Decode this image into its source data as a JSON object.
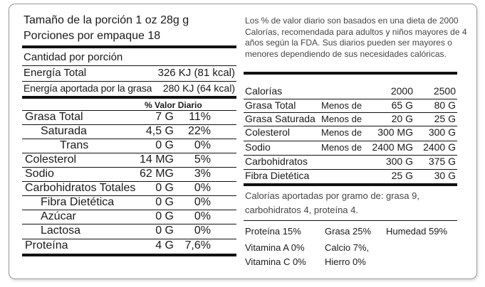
{
  "serving": {
    "size": "Tamaño de la porción 1 oz 28g g",
    "per_container": "Porciones por empaque 18"
  },
  "amount_header": "Cantidad por porción",
  "energy": {
    "label": "Energía Total",
    "value": "326 KJ (81 kcal)"
  },
  "energy_fat": {
    "label": "Energía aportada por la grasa",
    "value": "280 KJ (64 kcal)"
  },
  "dv_header": "% Valor Diario",
  "nutrients": [
    {
      "name": "Grasa Total",
      "amount": "7 G",
      "dv": "11%"
    },
    {
      "name": "Saturada",
      "amount": "4,5 G",
      "dv": "22%"
    },
    {
      "name": "Trans",
      "amount": "0 G",
      "dv": "0%"
    },
    {
      "name": "Colesterol",
      "amount": "14 MG",
      "dv": "5%"
    },
    {
      "name": "Sodio",
      "amount": "62 MG",
      "dv": "3%"
    },
    {
      "name": "Carbohidratos Totales",
      "amount": "0 G",
      "dv": "0%"
    },
    {
      "name": "Fibra Dietética",
      "amount": "0 G",
      "dv": "0%"
    },
    {
      "name": "Azúcar",
      "amount": "0 G",
      "dv": "0%"
    },
    {
      "name": "Lactosa",
      "amount": "0 G",
      "dv": "0%"
    },
    {
      "name": "Proteína",
      "amount": "4 G",
      "dv": "7,6%"
    }
  ],
  "footnote": {
    "line1": "Los % de valor diario son basados en una dieta de 2000",
    "line2": "Calorías, recomendada para adultos y niños mayores de 4",
    "line3": "años según la FDA. Sus diarios pueden ser mayores o",
    "line4": "menores dependiendo de sus necesidades calóricas."
  },
  "dv_table": {
    "header": {
      "label": "Calorías",
      "c1": "2000",
      "c2": "2500"
    },
    "rows": [
      {
        "label": "Grasa Total",
        "qual": "Menos de",
        "c1": "65 G",
        "c2": "80 G"
      },
      {
        "label": "Grasa Saturada",
        "qual": "Menos de",
        "c1": "20 G",
        "c2": "25 G"
      },
      {
        "label": "Colesterol",
        "qual": "Menos de",
        "c1": "300 MG",
        "c2": "300 G"
      },
      {
        "label": "Sodio",
        "qual": "Menos de",
        "c1": "2400 MG",
        "c2": "2400 G"
      },
      {
        "label": "Carbohidratos",
        "qual": "",
        "c1": "300 G",
        "c2": "375 G"
      },
      {
        "label": "Fibra Dietética",
        "qual": "",
        "c1": "25 G",
        "c2": "30 G"
      }
    ]
  },
  "calories_per_gram": {
    "line1": "Calorías aportadas por gramo de: grasa 9,",
    "line2": "carbohidratos 4, proteína 4."
  },
  "bottom": {
    "protein": "Proteína  15%",
    "fat": "Grasa  25%",
    "moisture": "Humedad  59%",
    "vit_a": "Vitamina A 0%",
    "calcium": "Calcio 7%,",
    "vit_c": "Vitamina C 0%",
    "iron": "Hierro 0%"
  }
}
